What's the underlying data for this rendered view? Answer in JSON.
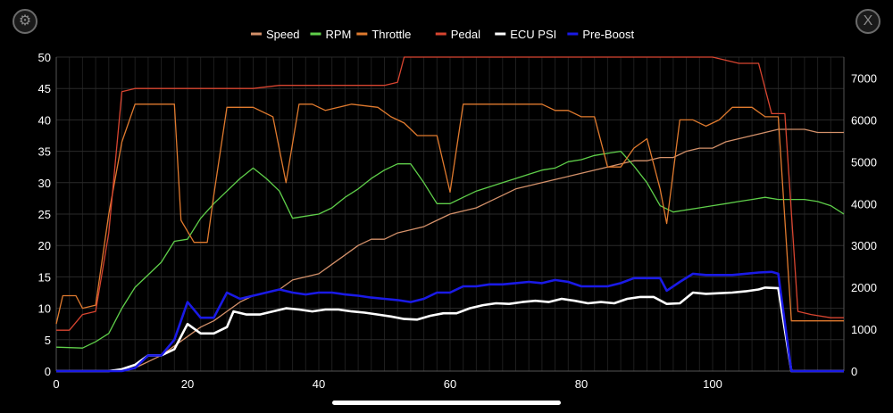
{
  "controls": {
    "settings_icon": "gear-icon",
    "close_icon": "close-icon",
    "close_glyph": "X"
  },
  "chart_data": {
    "type": "line",
    "title": "",
    "xlabel": "",
    "ylabel": "",
    "xlim": [
      0,
      120
    ],
    "ylim": [
      0,
      50
    ],
    "y2lim": [
      0,
      7500
    ],
    "x_ticks": [
      0,
      20,
      40,
      60,
      80,
      100
    ],
    "y_ticks": [
      0,
      5,
      10,
      15,
      20,
      25,
      30,
      35,
      40,
      45,
      50
    ],
    "y2_ticks": [
      0,
      1000,
      2000,
      3000,
      4000,
      5000,
      6000,
      7000
    ],
    "grid": true,
    "legend_position": "top-center",
    "series": [
      {
        "name": "Speed",
        "color": "#d4916a",
        "axis": "left",
        "width": 1.3,
        "points": [
          [
            0,
            0
          ],
          [
            10,
            0
          ],
          [
            12,
            0.5
          ],
          [
            16,
            2.5
          ],
          [
            18,
            4
          ],
          [
            20,
            5.5
          ],
          [
            22,
            7
          ],
          [
            24,
            8
          ],
          [
            26,
            9.5
          ],
          [
            28,
            11
          ],
          [
            30,
            12
          ],
          [
            32,
            12.5
          ],
          [
            34,
            13
          ],
          [
            36,
            14.5
          ],
          [
            38,
            15
          ],
          [
            40,
            15.5
          ],
          [
            42,
            17
          ],
          [
            44,
            18.5
          ],
          [
            46,
            20
          ],
          [
            48,
            21
          ],
          [
            50,
            21
          ],
          [
            52,
            22
          ],
          [
            54,
            22.5
          ],
          [
            56,
            23
          ],
          [
            58,
            24
          ],
          [
            60,
            25
          ],
          [
            62,
            25.5
          ],
          [
            64,
            26
          ],
          [
            66,
            27
          ],
          [
            68,
            28
          ],
          [
            70,
            29
          ],
          [
            72,
            29.5
          ],
          [
            74,
            30
          ],
          [
            76,
            30.5
          ],
          [
            78,
            31
          ],
          [
            80,
            31.5
          ],
          [
            82,
            32
          ],
          [
            84,
            32.5
          ],
          [
            86,
            33
          ],
          [
            88,
            33.5
          ],
          [
            90,
            33.5
          ],
          [
            92,
            34
          ],
          [
            94,
            34
          ],
          [
            96,
            35
          ],
          [
            98,
            35.5
          ],
          [
            100,
            35.5
          ],
          [
            102,
            36.5
          ],
          [
            104,
            37
          ],
          [
            106,
            37.5
          ],
          [
            108,
            38
          ],
          [
            110,
            38.5
          ],
          [
            112,
            38.5
          ],
          [
            114,
            38.5
          ],
          [
            116,
            38
          ],
          [
            118,
            38
          ],
          [
            120,
            38
          ]
        ]
      },
      {
        "name": "RPM",
        "color": "#5fcf4a",
        "axis": "right",
        "width": 1.3,
        "points": [
          [
            0,
            570
          ],
          [
            2,
            560
          ],
          [
            4,
            550
          ],
          [
            6,
            700
          ],
          [
            8,
            900
          ],
          [
            10,
            1500
          ],
          [
            12,
            2000
          ],
          [
            14,
            2300
          ],
          [
            16,
            2600
          ],
          [
            18,
            3100
          ],
          [
            20,
            3150
          ],
          [
            22,
            3650
          ],
          [
            24,
            4000
          ],
          [
            26,
            4300
          ],
          [
            28,
            4600
          ],
          [
            30,
            4850
          ],
          [
            32,
            4600
          ],
          [
            34,
            4300
          ],
          [
            36,
            3650
          ],
          [
            38,
            3700
          ],
          [
            40,
            3750
          ],
          [
            42,
            3900
          ],
          [
            44,
            4150
          ],
          [
            46,
            4350
          ],
          [
            48,
            4600
          ],
          [
            50,
            4800
          ],
          [
            52,
            4950
          ],
          [
            54,
            4950
          ],
          [
            56,
            4500
          ],
          [
            58,
            4000
          ],
          [
            60,
            4000
          ],
          [
            62,
            4150
          ],
          [
            64,
            4300
          ],
          [
            66,
            4400
          ],
          [
            68,
            4500
          ],
          [
            70,
            4600
          ],
          [
            72,
            4700
          ],
          [
            74,
            4800
          ],
          [
            76,
            4850
          ],
          [
            78,
            5000
          ],
          [
            80,
            5050
          ],
          [
            82,
            5150
          ],
          [
            84,
            5200
          ],
          [
            86,
            5250
          ],
          [
            88,
            4900
          ],
          [
            90,
            4500
          ],
          [
            92,
            3950
          ],
          [
            94,
            3800
          ],
          [
            96,
            3850
          ],
          [
            98,
            3900
          ],
          [
            100,
            3950
          ],
          [
            102,
            4000
          ],
          [
            104,
            4050
          ],
          [
            106,
            4100
          ],
          [
            108,
            4150
          ],
          [
            110,
            4100
          ],
          [
            112,
            4100
          ],
          [
            114,
            4100
          ],
          [
            116,
            4050
          ],
          [
            118,
            3950
          ],
          [
            120,
            3750
          ]
        ]
      },
      {
        "name": "Throttle",
        "color": "#e07a2e",
        "axis": "left",
        "width": 1.3,
        "points": [
          [
            0,
            7.5
          ],
          [
            1,
            12
          ],
          [
            3,
            12
          ],
          [
            4,
            10
          ],
          [
            6,
            10.5
          ],
          [
            8,
            25
          ],
          [
            10,
            36.5
          ],
          [
            12,
            42.5
          ],
          [
            16,
            42.5
          ],
          [
            18,
            42.5
          ],
          [
            19,
            24
          ],
          [
            21,
            20.5
          ],
          [
            23,
            20.5
          ],
          [
            24,
            28
          ],
          [
            26,
            42
          ],
          [
            30,
            42
          ],
          [
            33,
            40.5
          ],
          [
            35,
            30
          ],
          [
            37,
            42.5
          ],
          [
            39,
            42.5
          ],
          [
            41,
            41.5
          ],
          [
            43,
            42
          ],
          [
            45,
            42.5
          ],
          [
            49,
            42
          ],
          [
            51,
            40.5
          ],
          [
            53,
            39.5
          ],
          [
            55,
            37.5
          ],
          [
            58,
            37.5
          ],
          [
            60,
            28.5
          ],
          [
            62,
            42.5
          ],
          [
            66,
            42.5
          ],
          [
            70,
            42.5
          ],
          [
            74,
            42.5
          ],
          [
            76,
            41.5
          ],
          [
            78,
            41.5
          ],
          [
            80,
            40.5
          ],
          [
            82,
            40.5
          ],
          [
            84,
            32.5
          ],
          [
            86,
            32.5
          ],
          [
            88,
            35.5
          ],
          [
            90,
            37
          ],
          [
            92,
            29
          ],
          [
            93,
            23.5
          ],
          [
            95,
            40
          ],
          [
            97,
            40
          ],
          [
            99,
            39
          ],
          [
            101,
            40
          ],
          [
            103,
            42
          ],
          [
            106,
            42
          ],
          [
            108,
            40.5
          ],
          [
            110,
            40.5
          ],
          [
            112,
            8
          ],
          [
            114,
            8
          ],
          [
            116,
            8
          ],
          [
            118,
            8
          ],
          [
            120,
            8
          ]
        ]
      },
      {
        "name": "Pedal",
        "color": "#d84530",
        "axis": "left",
        "width": 1.3,
        "points": [
          [
            0,
            6.5
          ],
          [
            2,
            6.5
          ],
          [
            4,
            9
          ],
          [
            6,
            9.5
          ],
          [
            8,
            22
          ],
          [
            10,
            44.5
          ],
          [
            12,
            45
          ],
          [
            18,
            45
          ],
          [
            28,
            45
          ],
          [
            30,
            45
          ],
          [
            34,
            45.5
          ],
          [
            46,
            45.5
          ],
          [
            50,
            45.5
          ],
          [
            52,
            46
          ],
          [
            53,
            50
          ],
          [
            56,
            50
          ],
          [
            80,
            50
          ],
          [
            100,
            50
          ],
          [
            102,
            49.5
          ],
          [
            104,
            49
          ],
          [
            107,
            49
          ],
          [
            109,
            41
          ],
          [
            111,
            41
          ],
          [
            113,
            9.5
          ],
          [
            115,
            9
          ],
          [
            118,
            8.5
          ],
          [
            120,
            8.5
          ]
        ]
      },
      {
        "name": "ECU PSI",
        "color": "#ffffff",
        "axis": "left",
        "width": 2.6,
        "points": [
          [
            0,
            0
          ],
          [
            8,
            0
          ],
          [
            10,
            0.3
          ],
          [
            12,
            1
          ],
          [
            14,
            2.5
          ],
          [
            16,
            2.5
          ],
          [
            18,
            3.5
          ],
          [
            20,
            7.5
          ],
          [
            22,
            6
          ],
          [
            24,
            6
          ],
          [
            26,
            7
          ],
          [
            27,
            9.5
          ],
          [
            29,
            9
          ],
          [
            31,
            9
          ],
          [
            33,
            9.5
          ],
          [
            35,
            10
          ],
          [
            37,
            9.8
          ],
          [
            39,
            9.5
          ],
          [
            41,
            9.8
          ],
          [
            43,
            9.8
          ],
          [
            45,
            9.5
          ],
          [
            47,
            9.3
          ],
          [
            49,
            9
          ],
          [
            51,
            8.7
          ],
          [
            53,
            8.3
          ],
          [
            55,
            8.2
          ],
          [
            57,
            8.8
          ],
          [
            59,
            9.2
          ],
          [
            61,
            9.2
          ],
          [
            63,
            10
          ],
          [
            65,
            10.5
          ],
          [
            67,
            10.8
          ],
          [
            69,
            10.7
          ],
          [
            71,
            11
          ],
          [
            73,
            11.2
          ],
          [
            75,
            11
          ],
          [
            77,
            11.5
          ],
          [
            79,
            11.2
          ],
          [
            81,
            10.8
          ],
          [
            83,
            11
          ],
          [
            85,
            10.8
          ],
          [
            87,
            11.5
          ],
          [
            89,
            11.8
          ],
          [
            91,
            11.8
          ],
          [
            93,
            10.7
          ],
          [
            95,
            10.8
          ],
          [
            97,
            12.5
          ],
          [
            99,
            12.3
          ],
          [
            101,
            12.4
          ],
          [
            103,
            12.5
          ],
          [
            105,
            12.7
          ],
          [
            107,
            13
          ],
          [
            108,
            13.3
          ],
          [
            110,
            13.2
          ],
          [
            112,
            0
          ],
          [
            113,
            0
          ],
          [
            120,
            0
          ]
        ]
      },
      {
        "name": "Pre-Boost",
        "color": "#1a1ae6",
        "axis": "left",
        "width": 2.6,
        "points": [
          [
            0,
            0
          ],
          [
            10,
            0
          ],
          [
            12,
            0.5
          ],
          [
            14,
            2.5
          ],
          [
            16,
            2.5
          ],
          [
            18,
            5
          ],
          [
            20,
            11
          ],
          [
            22,
            8.5
          ],
          [
            24,
            8.5
          ],
          [
            26,
            12.5
          ],
          [
            28,
            11.5
          ],
          [
            30,
            12
          ],
          [
            32,
            12.5
          ],
          [
            34,
            13
          ],
          [
            36,
            12.5
          ],
          [
            38,
            12.2
          ],
          [
            40,
            12.5
          ],
          [
            42,
            12.5
          ],
          [
            44,
            12.2
          ],
          [
            46,
            12
          ],
          [
            48,
            11.7
          ],
          [
            50,
            11.5
          ],
          [
            52,
            11.3
          ],
          [
            54,
            11
          ],
          [
            56,
            11.5
          ],
          [
            58,
            12.5
          ],
          [
            60,
            12.5
          ],
          [
            62,
            13.5
          ],
          [
            64,
            13.5
          ],
          [
            66,
            13.8
          ],
          [
            68,
            13.8
          ],
          [
            70,
            14
          ],
          [
            72,
            14.2
          ],
          [
            74,
            14
          ],
          [
            76,
            14.5
          ],
          [
            78,
            14.2
          ],
          [
            80,
            13.5
          ],
          [
            82,
            13.5
          ],
          [
            84,
            13.5
          ],
          [
            86,
            14
          ],
          [
            88,
            14.8
          ],
          [
            90,
            14.8
          ],
          [
            92,
            14.8
          ],
          [
            93,
            12.8
          ],
          [
            95,
            14.2
          ],
          [
            97,
            15.5
          ],
          [
            99,
            15.3
          ],
          [
            101,
            15.3
          ],
          [
            103,
            15.3
          ],
          [
            105,
            15.5
          ],
          [
            107,
            15.7
          ],
          [
            109,
            15.8
          ],
          [
            110,
            15.5
          ],
          [
            112,
            0
          ],
          [
            113,
            0
          ],
          [
            120,
            0
          ]
        ]
      }
    ]
  }
}
